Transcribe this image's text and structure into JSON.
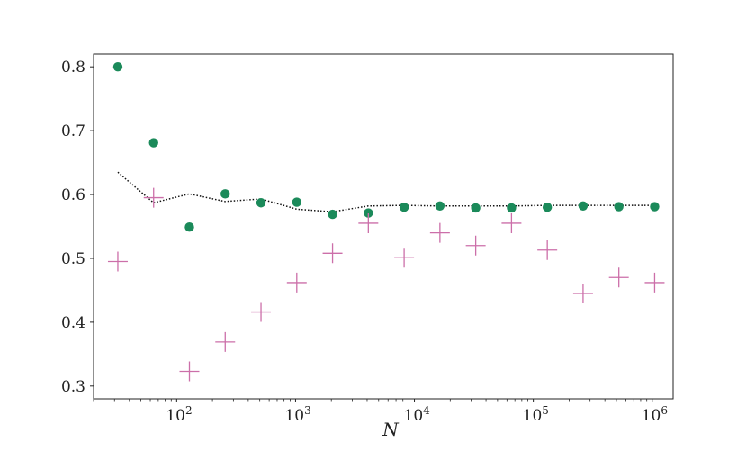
{
  "chart_data": {
    "type": "scatter",
    "title": "",
    "xlabel": "N",
    "ylabel": "",
    "xscale": "log",
    "xlim": [
      20,
      1500000
    ],
    "ylim": [
      0.28,
      0.82
    ],
    "grid": false,
    "legend": "none",
    "x_ticks": [
      {
        "value": 100,
        "base": "10",
        "exp": "2"
      },
      {
        "value": 1000,
        "base": "10",
        "exp": "3"
      },
      {
        "value": 10000,
        "base": "10",
        "exp": "4"
      },
      {
        "value": 100000,
        "base": "10",
        "exp": "5"
      },
      {
        "value": 1000000,
        "base": "10",
        "exp": "6"
      }
    ],
    "y_ticks": [
      {
        "value": 0.3,
        "label": "0.3"
      },
      {
        "value": 0.4,
        "label": "0.4"
      },
      {
        "value": 0.5,
        "label": "0.5"
      },
      {
        "value": 0.6,
        "label": "0.6"
      },
      {
        "value": 0.7,
        "label": "0.7"
      },
      {
        "value": 0.8,
        "label": "0.8"
      }
    ],
    "x": [
      32,
      64,
      128,
      256,
      512,
      1024,
      2048,
      4096,
      8192,
      16384,
      32768,
      65536,
      131072,
      262144,
      524288,
      1048576
    ],
    "series": [
      {
        "marker": "circle",
        "color": "#1b8a5a",
        "values": [
          0.8,
          0.681,
          0.549,
          0.601,
          0.587,
          0.588,
          0.569,
          0.571,
          0.58,
          0.582,
          0.579,
          0.579,
          0.58,
          0.582,
          0.581,
          0.581
        ]
      },
      {
        "marker": "plus",
        "color": "#cc6fa9",
        "values": [
          0.495,
          0.595,
          0.323,
          0.369,
          0.416,
          0.462,
          0.508,
          0.555,
          0.501,
          0.54,
          0.52,
          0.555,
          0.513,
          0.445,
          0.47,
          0.462
        ]
      },
      {
        "marker": "dotted-line",
        "color": "#111111",
        "values": [
          0.635,
          0.587,
          0.601,
          0.589,
          0.593,
          0.577,
          0.573,
          0.582,
          0.583,
          0.582,
          0.582,
          0.582,
          0.583,
          0.583,
          0.583,
          0.583
        ]
      }
    ]
  }
}
